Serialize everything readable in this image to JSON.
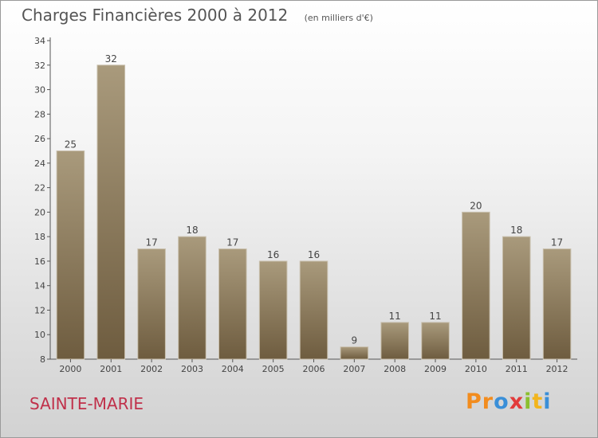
{
  "header": {
    "title": "Charges Financières 2000 à 2012",
    "unit": "(en milliers d'€)"
  },
  "footer": {
    "commune": "SAINTE-MARIE",
    "logo_letters": [
      "P",
      "r",
      "o",
      "x",
      "i",
      "t",
      "i"
    ]
  },
  "colors": {
    "bar_fill_light": "#a99a7c",
    "bar_fill_dark": "#6e5c3f",
    "commune_text": "#c0304a",
    "logo": [
      "#f28c1e",
      "#f28c1e",
      "#3a8fd8",
      "#e23b3b",
      "#8bbf2e",
      "#f2b51e",
      "#3a8fd8"
    ]
  },
  "chart_data": {
    "type": "bar",
    "title": "Charges Financières 2000 à 2012",
    "xlabel": "",
    "ylabel": "",
    "categories": [
      "2000",
      "2001",
      "2002",
      "2003",
      "2004",
      "2005",
      "2006",
      "2007",
      "2008",
      "2009",
      "2010",
      "2011",
      "2012"
    ],
    "values": [
      25,
      32,
      17,
      18,
      17,
      16,
      16,
      9,
      11,
      11,
      20,
      18,
      17
    ],
    "ylim": [
      8,
      34
    ],
    "yticks": [
      8,
      10,
      12,
      14,
      16,
      18,
      20,
      22,
      24,
      26,
      28,
      30,
      32,
      34
    ],
    "grid": false,
    "legend": "none"
  }
}
